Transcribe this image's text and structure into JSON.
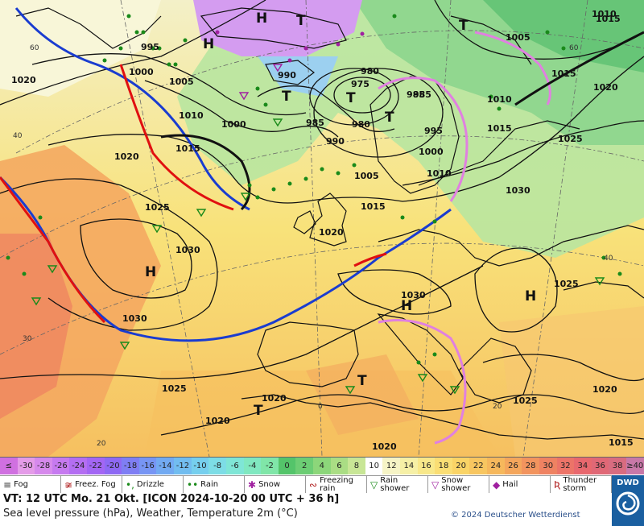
{
  "map": {
    "pressure_labels": [
      "1020",
      "1000",
      "1005",
      "1010",
      "1015",
      "1020",
      "995",
      "985",
      "1000",
      "1010",
      "1015",
      "1020",
      "1025",
      "990",
      "980",
      "975",
      "985",
      "990",
      "980",
      "995",
      "1000",
      "1005",
      "1010",
      "1015",
      "1020",
      "1025",
      "1030",
      "1030",
      "1025",
      "1030",
      "1030",
      "1025",
      "1020",
      "1020",
      "1020",
      "1015",
      "1015",
      "1025",
      "1020",
      "1005",
      "1015",
      "1010",
      "985"
    ],
    "centers": [
      {
        "label": "H",
        "name": "high-center"
      },
      {
        "label": "H",
        "name": "high-center"
      },
      {
        "label": "H",
        "name": "high-center"
      },
      {
        "label": "H",
        "name": "high-center"
      },
      {
        "label": "H",
        "name": "high-center"
      },
      {
        "label": "T",
        "name": "low-center"
      },
      {
        "label": "T",
        "name": "low-center"
      },
      {
        "label": "T",
        "name": "low-center"
      },
      {
        "label": "T",
        "name": "low-center"
      },
      {
        "label": "T",
        "name": "low-center"
      },
      {
        "label": "T",
        "name": "low-center"
      },
      {
        "label": "T",
        "name": "low-center"
      }
    ],
    "grid_labels": [
      "40",
      "30",
      "20",
      "0",
      "40",
      "20",
      "60",
      "60"
    ],
    "colors": {
      "cold_front": "#1a3cd0",
      "warm_front": "#e01010",
      "occlusion": "#e080e0",
      "isobar": "#111111"
    }
  },
  "scale": {
    "bins": [
      {
        "label": "≤ -30",
        "color": "#d070e0"
      },
      {
        "label": "-30",
        "color": "#e49be8"
      },
      {
        "label": "-28",
        "color": "#d689ec"
      },
      {
        "label": "-26",
        "color": "#c67af0"
      },
      {
        "label": "-24",
        "color": "#b46ef2"
      },
      {
        "label": "-22",
        "color": "#a366f4"
      },
      {
        "label": "-20",
        "color": "#8e69f4"
      },
      {
        "label": "-18",
        "color": "#7f7ef4"
      },
      {
        "label": "-16",
        "color": "#7795f4"
      },
      {
        "label": "-14",
        "color": "#72aaf2"
      },
      {
        "label": "-12",
        "color": "#72bdf0"
      },
      {
        "label": "-10",
        "color": "#76cfee"
      },
      {
        "label": "-8",
        "color": "#7ddde6"
      },
      {
        "label": "-6",
        "color": "#7fe6d6"
      },
      {
        "label": "-4",
        "color": "#80e8c0"
      },
      {
        "label": "-2",
        "color": "#80e6a8"
      },
      {
        "label": "0",
        "color": "#54c46a"
      },
      {
        "label": "2",
        "color": "#6ccd74"
      },
      {
        "label": "4",
        "color": "#8cd67a"
      },
      {
        "label": "6",
        "color": "#aadd84"
      },
      {
        "label": "8",
        "color": "#c8e696"
      },
      {
        "label": "10",
        "color": "#ffffff"
      },
      {
        "label": "12",
        "color": "#f6f4c6"
      },
      {
        "label": "14",
        "color": "#f6f0a6"
      },
      {
        "label": "16",
        "color": "#f8e88a"
      },
      {
        "label": "18",
        "color": "#fade74"
      },
      {
        "label": "20",
        "color": "#fad466"
      },
      {
        "label": "22",
        "color": "#f8c660"
      },
      {
        "label": "24",
        "color": "#f6b85c"
      },
      {
        "label": "26",
        "color": "#f4a65c"
      },
      {
        "label": "28",
        "color": "#f2945e"
      },
      {
        "label": "30",
        "color": "#ef8262"
      },
      {
        "label": "32",
        "color": "#ec7468"
      },
      {
        "label": "34",
        "color": "#e8686e"
      },
      {
        "label": "36",
        "color": "#e06876"
      },
      {
        "label": "38",
        "color": "#d86c80"
      },
      {
        "label": "≥40 °C",
        "color": "#c878a8"
      }
    ]
  },
  "legend": {
    "items": [
      {
        "label": "Fog",
        "symbol": "≡",
        "color": "#333"
      },
      {
        "label": "Freez. Fog",
        "symbol": "≆",
        "color": "#b02020"
      },
      {
        "label": "Drizzle",
        "symbol": "•,",
        "color": "#1a8a1a"
      },
      {
        "label": "Rain",
        "symbol": "••",
        "color": "#1a8a1a"
      },
      {
        "label": "Snow",
        "symbol": "✱",
        "color": "#a020a0"
      },
      {
        "label": "Freezing rain",
        "symbol": "∾",
        "color": "#b02020"
      },
      {
        "label": "Rain shower",
        "symbol": "▽",
        "color": "#1a8a1a"
      },
      {
        "label": "Snow shower",
        "symbol": "▽",
        "color": "#a020a0"
      },
      {
        "label": "Hail",
        "symbol": "◆",
        "color": "#a020a0"
      },
      {
        "label": "Thunder storm",
        "symbol": "Ʀ",
        "color": "#b02020"
      }
    ]
  },
  "info": {
    "line1": "VT: 12 UTC Mo.  21 Okt. [ICON 2024-10-20  00 UTC + 36 h]",
    "line2": "Sea level pressure (hPa), Weather, Temperature 2m (°C)",
    "copyright": "© 2024 Deutscher Wetterdienst"
  },
  "logo": {
    "text": "DWD"
  }
}
